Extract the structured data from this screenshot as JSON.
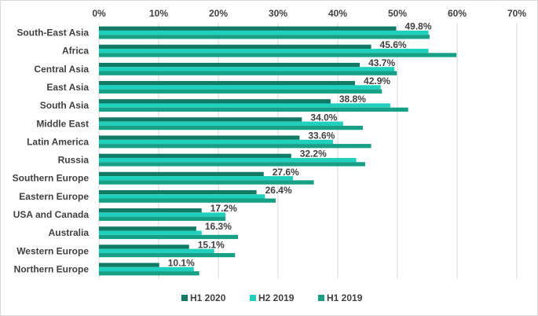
{
  "chart_data": {
    "type": "bar",
    "orientation": "horizontal",
    "title": "",
    "xlabel": "",
    "ylabel": "",
    "xlim": [
      0,
      70
    ],
    "x_ticks": [
      "0%",
      "10%",
      "20%",
      "30%",
      "40%",
      "50%",
      "60%",
      "70%"
    ],
    "x_tick_values": [
      0,
      10,
      20,
      30,
      40,
      50,
      60,
      70
    ],
    "x_axis_position": "top",
    "grid": true,
    "legend_position": "bottom",
    "categories": [
      "South-East Asia",
      "Africa",
      "Central Asia",
      "East Asia",
      "South Asia",
      "Middle East",
      "Latin America",
      "Russia",
      "Southern Europe",
      "Eastern Europe",
      "USA and Canada",
      "Australia",
      "Western Europe",
      "Northern Europe"
    ],
    "series": [
      {
        "name": "H1 2020",
        "color": "#117a65",
        "values": [
          49.8,
          45.6,
          43.7,
          42.9,
          38.8,
          34.0,
          33.6,
          32.2,
          27.6,
          26.4,
          17.2,
          16.3,
          15.1,
          10.1
        ]
      },
      {
        "name": "H2 2019",
        "color": "#1fd1bd",
        "values": [
          55.2,
          55.2,
          49.5,
          47.2,
          48.8,
          40.9,
          39.2,
          43.1,
          32.5,
          27.8,
          21.2,
          17.2,
          19.3,
          15.9
        ]
      },
      {
        "name": "H1 2019",
        "color": "#16a085",
        "values": [
          55.4,
          59.9,
          49.9,
          47.4,
          51.8,
          44.2,
          45.6,
          44.6,
          36.0,
          29.6,
          21.2,
          23.3,
          22.8,
          16.8
        ]
      }
    ],
    "data_labels": [
      "49.8%",
      "45.6%",
      "43.7%",
      "42.9%",
      "38.8%",
      "34.0%",
      "33.6%",
      "32.2%",
      "27.6%",
      "26.4%",
      "17.2%",
      "16.3%",
      "15.1%",
      "10.1%"
    ],
    "legend": [
      "H1 2020",
      "H2 2019",
      "H1 2019"
    ],
    "gridline_color": "#d9d9d9"
  }
}
